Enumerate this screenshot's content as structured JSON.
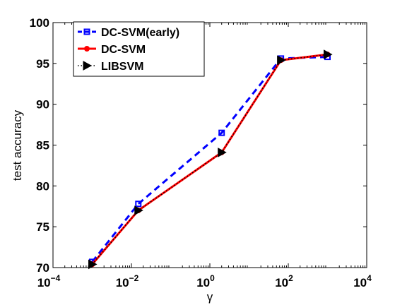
{
  "chart_data": {
    "type": "line",
    "xlabel": "γ",
    "ylabel": "test accuracy",
    "xscale": "log",
    "xlim": [
      0.0001,
      10000
    ],
    "ylim": [
      70,
      100
    ],
    "x_ticks": [
      {
        "base": "10",
        "exp": "−4"
      },
      {
        "base": "10",
        "exp": "−2"
      },
      {
        "base": "10",
        "exp": "0"
      },
      {
        "base": "10",
        "exp": "2"
      },
      {
        "base": "10",
        "exp": "4"
      }
    ],
    "y_ticks": [
      "70",
      "75",
      "80",
      "85",
      "90",
      "95",
      "100"
    ],
    "grid": false,
    "legend_position": "top-left",
    "x": [
      0.001,
      0.015,
      2,
      65,
      1000
    ],
    "series": [
      {
        "name": "DC-SVM(early)",
        "color": "#0000ff",
        "line": "dashed",
        "marker": "square",
        "values": [
          70.7,
          77.8,
          86.5,
          95.6,
          95.8
        ]
      },
      {
        "name": "DC-SVM",
        "color": "#ff0000",
        "line": "solid",
        "marker": "circle",
        "values": [
          70.4,
          77.0,
          84.1,
          95.4,
          96.1
        ]
      },
      {
        "name": "LIBSVM",
        "color": "#000000",
        "line": "dotted",
        "marker": "triangle-right",
        "values": [
          70.4,
          77.0,
          84.1,
          95.4,
          96.1
        ]
      }
    ]
  }
}
